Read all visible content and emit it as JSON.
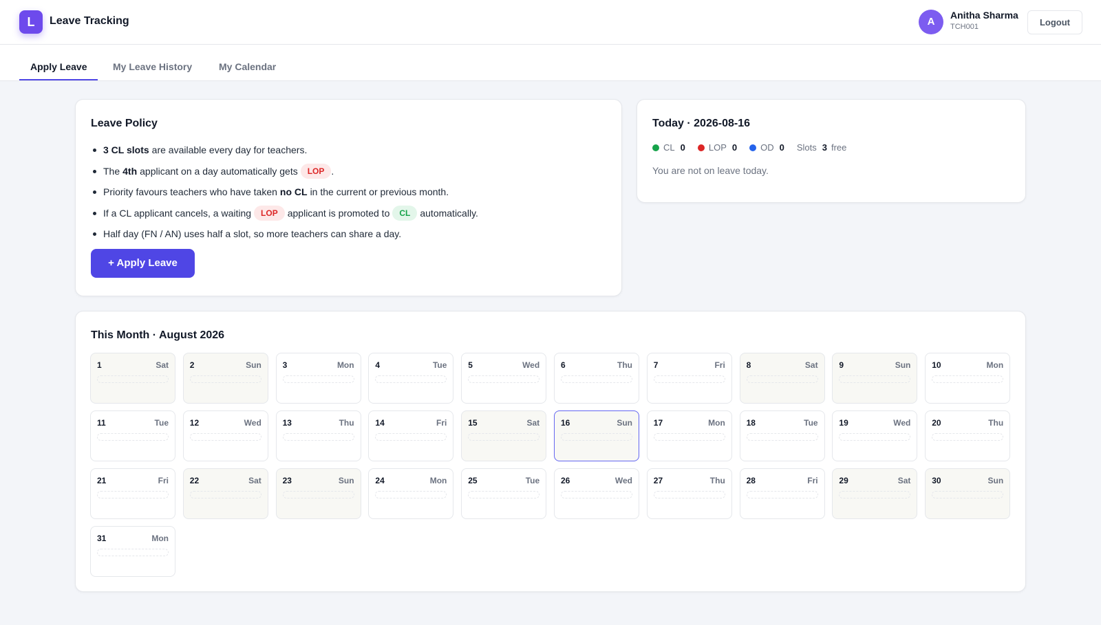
{
  "header": {
    "logo_letter": "L",
    "app_title": "Leave Tracking",
    "user": {
      "avatar_letter": "A",
      "name": "Anitha Sharma",
      "id": "TCH001"
    },
    "logout_label": "Logout"
  },
  "tabs": [
    {
      "label": "Apply Leave",
      "active": true
    },
    {
      "label": "My Leave History",
      "active": false
    },
    {
      "label": "My Calendar",
      "active": false
    }
  ],
  "policy": {
    "title": "Leave Policy",
    "items": [
      {
        "parts": [
          "3 CL slots",
          "are available every day for teachers."
        ]
      },
      {
        "parts": [
          "The",
          "4th",
          "applicant on a day automatically gets",
          "LOP",
          "."
        ]
      },
      {
        "parts": [
          "Priority favours teachers who have taken",
          "no CL",
          "in the current or previous month."
        ]
      },
      {
        "parts": [
          "If a CL applicant cancels, a waiting",
          "LOP",
          "applicant is promoted to",
          "CL",
          "automatically."
        ]
      },
      {
        "parts": [
          "Half day (FN / AN) uses half a slot, so more teachers can share a day."
        ]
      }
    ],
    "apply_button": "+ Apply Leave"
  },
  "today": {
    "title": "Today · 2026-08-16",
    "stats": [
      {
        "label": "CL",
        "value": "0",
        "color": "#16a34a"
      },
      {
        "label": "LOP",
        "value": "0",
        "color": "#dc2626"
      },
      {
        "label": "OD",
        "value": "0",
        "color": "#2563eb"
      }
    ],
    "slots": {
      "label": "Slots",
      "value": "3",
      "suffix": "free"
    },
    "message": "You are not on leave today."
  },
  "calendar": {
    "title": "This Month · August 2026",
    "today_day": 16,
    "days": [
      {
        "day": "1",
        "wd": "Sat"
      },
      {
        "day": "2",
        "wd": "Sun"
      },
      {
        "day": "3",
        "wd": "Mon"
      },
      {
        "day": "4",
        "wd": "Tue"
      },
      {
        "day": "5",
        "wd": "Wed"
      },
      {
        "day": "6",
        "wd": "Thu"
      },
      {
        "day": "7",
        "wd": "Fri"
      },
      {
        "day": "8",
        "wd": "Sat"
      },
      {
        "day": "9",
        "wd": "Sun"
      },
      {
        "day": "10",
        "wd": "Mon"
      },
      {
        "day": "11",
        "wd": "Tue"
      },
      {
        "day": "12",
        "wd": "Wed"
      },
      {
        "day": "13",
        "wd": "Thu"
      },
      {
        "day": "14",
        "wd": "Fri"
      },
      {
        "day": "15",
        "wd": "Sat"
      },
      {
        "day": "16",
        "wd": "Sun"
      },
      {
        "day": "17",
        "wd": "Mon"
      },
      {
        "day": "18",
        "wd": "Tue"
      },
      {
        "day": "19",
        "wd": "Wed"
      },
      {
        "day": "20",
        "wd": "Thu"
      },
      {
        "day": "21",
        "wd": "Fri"
      },
      {
        "day": "22",
        "wd": "Sat"
      },
      {
        "day": "23",
        "wd": "Sun"
      },
      {
        "day": "24",
        "wd": "Mon"
      },
      {
        "day": "25",
        "wd": "Tue"
      },
      {
        "day": "26",
        "wd": "Wed"
      },
      {
        "day": "27",
        "wd": "Thu"
      },
      {
        "day": "28",
        "wd": "Fri"
      },
      {
        "day": "29",
        "wd": "Sat"
      },
      {
        "day": "30",
        "wd": "Sun"
      },
      {
        "day": "31",
        "wd": "Mon"
      }
    ]
  }
}
